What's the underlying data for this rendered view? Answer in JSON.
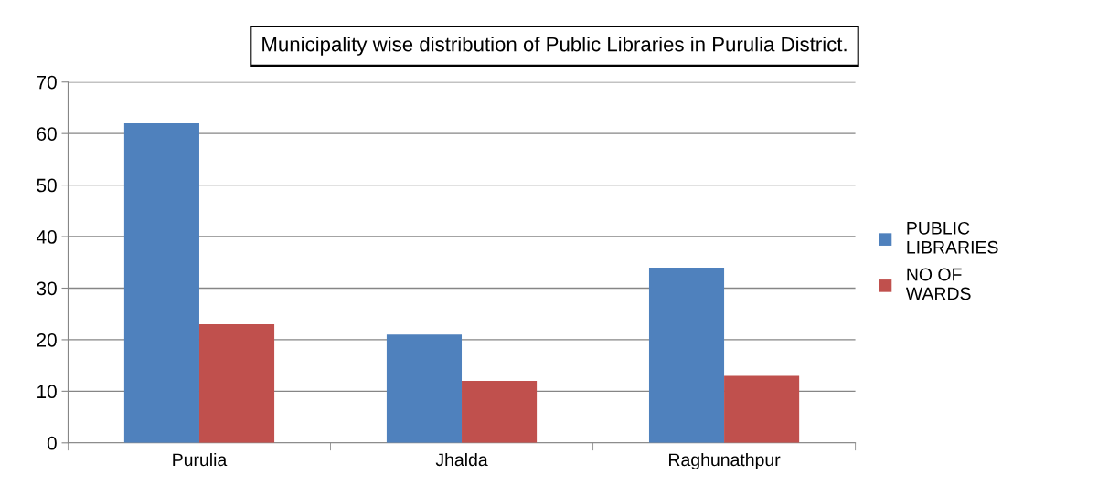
{
  "chart_data": {
    "type": "bar",
    "title": "Municipality wise distribution of Public Libraries in Purulia District.",
    "categories": [
      "Purulia",
      "Jhalda",
      "Raghunathpur"
    ],
    "series": [
      {
        "name": "PUBLIC LIBRARIES",
        "color": "#4f81bd",
        "values": [
          62,
          21,
          34
        ]
      },
      {
        "name": "NO OF WARDS",
        "color": "#c0504d",
        "values": [
          23,
          12,
          13
        ]
      }
    ],
    "ylim": [
      0,
      70
    ],
    "yticks": [
      0,
      10,
      20,
      30,
      40,
      50,
      60,
      70
    ],
    "grid": "y",
    "legend": "right"
  }
}
